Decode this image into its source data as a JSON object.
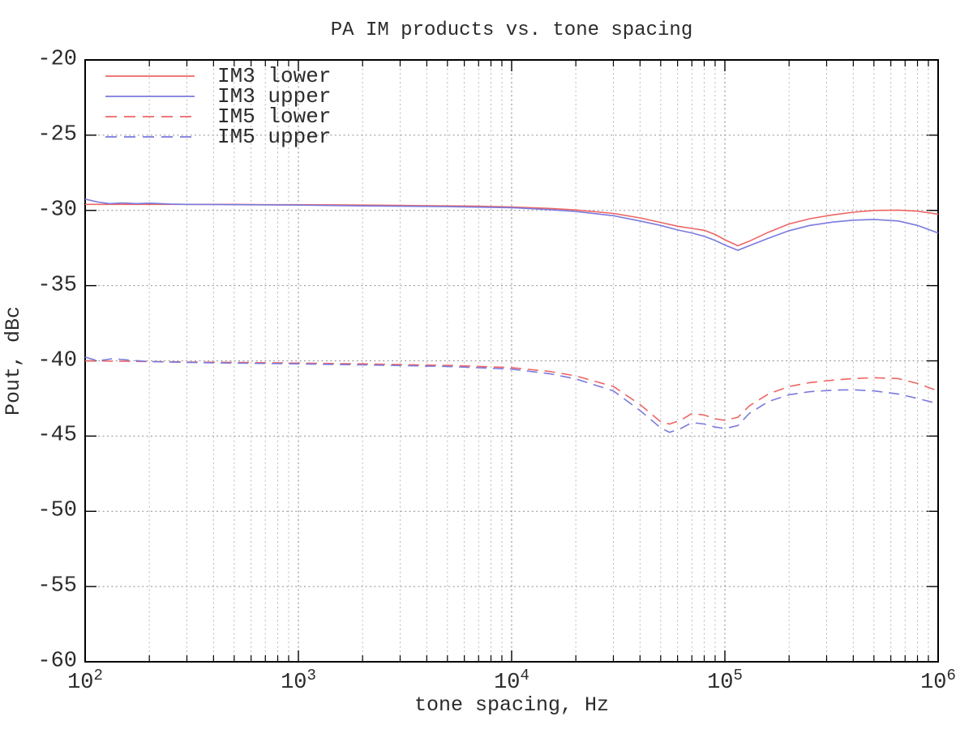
{
  "chart_data": {
    "type": "line",
    "title": "PA IM products vs. tone spacing",
    "xlabel": "tone spacing, Hz",
    "ylabel": "Pout, dBc",
    "xscale": "log",
    "xlim": [
      100,
      1000000
    ],
    "ylim": [
      -60,
      -20
    ],
    "grid": true,
    "legend_position": "top-left",
    "axis_color": "#000000",
    "grid_minor_color": "#b8b8b8",
    "grid_major_color": "#8e8e8e",
    "x_ticks": [
      {
        "mantissa": "10",
        "exp": "2",
        "value": 100
      },
      {
        "mantissa": "10",
        "exp": "3",
        "value": 1000
      },
      {
        "mantissa": "10",
        "exp": "4",
        "value": 10000
      },
      {
        "mantissa": "10",
        "exp": "5",
        "value": 100000
      },
      {
        "mantissa": "10",
        "exp": "6",
        "value": 1000000
      }
    ],
    "y_ticks": [
      {
        "label": "-20",
        "value": -20
      },
      {
        "label": "-25",
        "value": -25
      },
      {
        "label": "-30",
        "value": -30
      },
      {
        "label": "-35",
        "value": -35
      },
      {
        "label": "-40",
        "value": -40
      },
      {
        "label": "-45",
        "value": -45
      },
      {
        "label": "-50",
        "value": -50
      },
      {
        "label": "-55",
        "value": -55
      },
      {
        "label": "-60",
        "value": -60
      }
    ],
    "series": [
      {
        "name": "IM3 lower",
        "color": "#ed6565",
        "style": "solid",
        "points": [
          [
            100,
            -29.6
          ],
          [
            150,
            -29.6
          ],
          [
            200,
            -29.6
          ],
          [
            300,
            -29.6
          ],
          [
            500,
            -29.6
          ],
          [
            700,
            -29.62
          ],
          [
            1000,
            -29.62
          ],
          [
            1500,
            -29.63
          ],
          [
            2000,
            -29.65
          ],
          [
            3000,
            -29.67
          ],
          [
            5000,
            -29.7
          ],
          [
            7000,
            -29.72
          ],
          [
            10000,
            -29.77
          ],
          [
            15000,
            -29.87
          ],
          [
            20000,
            -29.97
          ],
          [
            30000,
            -30.2
          ],
          [
            40000,
            -30.5
          ],
          [
            50000,
            -30.8
          ],
          [
            60000,
            -31.05
          ],
          [
            70000,
            -31.2
          ],
          [
            80000,
            -31.32
          ],
          [
            90000,
            -31.6
          ],
          [
            100000,
            -31.95
          ],
          [
            115000,
            -32.35
          ],
          [
            130000,
            -32.05
          ],
          [
            160000,
            -31.45
          ],
          [
            200000,
            -30.9
          ],
          [
            250000,
            -30.55
          ],
          [
            320000,
            -30.3
          ],
          [
            400000,
            -30.12
          ],
          [
            500000,
            -30.0
          ],
          [
            650000,
            -29.98
          ],
          [
            800000,
            -30.05
          ],
          [
            1000000,
            -30.25
          ]
        ]
      },
      {
        "name": "IM3 upper",
        "color": "#7a7ade",
        "style": "solid",
        "points": [
          [
            100,
            -29.25
          ],
          [
            115,
            -29.45
          ],
          [
            130,
            -29.55
          ],
          [
            150,
            -29.5
          ],
          [
            175,
            -29.55
          ],
          [
            200,
            -29.52
          ],
          [
            250,
            -29.58
          ],
          [
            300,
            -29.6
          ],
          [
            500,
            -29.62
          ],
          [
            1000,
            -29.65
          ],
          [
            2000,
            -29.7
          ],
          [
            5000,
            -29.75
          ],
          [
            10000,
            -29.82
          ],
          [
            15000,
            -29.95
          ],
          [
            20000,
            -30.07
          ],
          [
            30000,
            -30.35
          ],
          [
            40000,
            -30.7
          ],
          [
            50000,
            -31.0
          ],
          [
            60000,
            -31.3
          ],
          [
            70000,
            -31.5
          ],
          [
            80000,
            -31.72
          ],
          [
            90000,
            -32.0
          ],
          [
            100000,
            -32.3
          ],
          [
            115000,
            -32.65
          ],
          [
            130000,
            -32.35
          ],
          [
            160000,
            -31.85
          ],
          [
            200000,
            -31.35
          ],
          [
            250000,
            -31.0
          ],
          [
            320000,
            -30.78
          ],
          [
            400000,
            -30.65
          ],
          [
            500000,
            -30.6
          ],
          [
            650000,
            -30.7
          ],
          [
            800000,
            -31.0
          ],
          [
            1000000,
            -31.5
          ]
        ]
      },
      {
        "name": "IM5 lower",
        "color": "#ed6565",
        "style": "dashed",
        "points": [
          [
            100,
            -40.0
          ],
          [
            150,
            -40.02
          ],
          [
            200,
            -40.05
          ],
          [
            300,
            -40.08
          ],
          [
            500,
            -40.1
          ],
          [
            1000,
            -40.15
          ],
          [
            2000,
            -40.2
          ],
          [
            3000,
            -40.25
          ],
          [
            5000,
            -40.3
          ],
          [
            7000,
            -40.37
          ],
          [
            10000,
            -40.45
          ],
          [
            15000,
            -40.7
          ],
          [
            20000,
            -41.0
          ],
          [
            30000,
            -41.7
          ],
          [
            40000,
            -42.9
          ],
          [
            50000,
            -44.05
          ],
          [
            55000,
            -44.2
          ],
          [
            62000,
            -43.95
          ],
          [
            70000,
            -43.5
          ],
          [
            80000,
            -43.6
          ],
          [
            90000,
            -43.85
          ],
          [
            100000,
            -43.95
          ],
          [
            115000,
            -43.75
          ],
          [
            130000,
            -43.0
          ],
          [
            160000,
            -42.2
          ],
          [
            200000,
            -41.7
          ],
          [
            250000,
            -41.45
          ],
          [
            320000,
            -41.28
          ],
          [
            400000,
            -41.18
          ],
          [
            500000,
            -41.12
          ],
          [
            650000,
            -41.18
          ],
          [
            800000,
            -41.5
          ],
          [
            1000000,
            -42.0
          ]
        ]
      },
      {
        "name": "IM5 upper",
        "color": "#7a7ade",
        "style": "dashed",
        "points": [
          [
            100,
            -39.75
          ],
          [
            115,
            -40.0
          ],
          [
            135,
            -39.85
          ],
          [
            160,
            -39.95
          ],
          [
            200,
            -40.05
          ],
          [
            300,
            -40.1
          ],
          [
            500,
            -40.15
          ],
          [
            1000,
            -40.2
          ],
          [
            2000,
            -40.27
          ],
          [
            5000,
            -40.37
          ],
          [
            10000,
            -40.55
          ],
          [
            15000,
            -40.85
          ],
          [
            20000,
            -41.2
          ],
          [
            30000,
            -42.0
          ],
          [
            40000,
            -43.3
          ],
          [
            50000,
            -44.45
          ],
          [
            55000,
            -44.75
          ],
          [
            62000,
            -44.5
          ],
          [
            70000,
            -44.1
          ],
          [
            80000,
            -44.2
          ],
          [
            90000,
            -44.4
          ],
          [
            100000,
            -44.5
          ],
          [
            115000,
            -44.3
          ],
          [
            130000,
            -43.5
          ],
          [
            160000,
            -42.7
          ],
          [
            200000,
            -42.25
          ],
          [
            250000,
            -42.05
          ],
          [
            320000,
            -41.95
          ],
          [
            400000,
            -41.92
          ],
          [
            500000,
            -42.0
          ],
          [
            650000,
            -42.2
          ],
          [
            800000,
            -42.5
          ],
          [
            1000000,
            -42.85
          ]
        ]
      }
    ]
  }
}
